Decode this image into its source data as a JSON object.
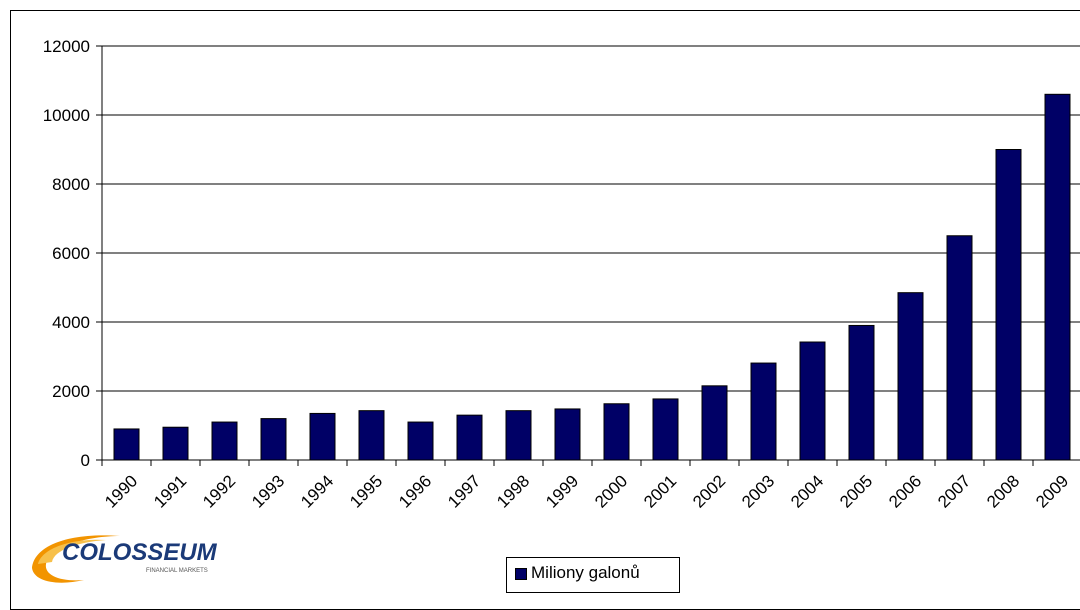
{
  "chart_data": {
    "type": "bar",
    "categories": [
      "1990",
      "1991",
      "1992",
      "1993",
      "1994",
      "1995",
      "1996",
      "1997",
      "1998",
      "1999",
      "2000",
      "2001",
      "2002",
      "2003",
      "2004",
      "2005",
      "2006",
      "2007",
      "2008",
      "2009"
    ],
    "series": [
      {
        "name": "Miliony galonů",
        "values": [
          900,
          950,
          1100,
          1200,
          1350,
          1430,
          1100,
          1300,
          1430,
          1480,
          1630,
          1770,
          2150,
          2810,
          3420,
          3900,
          4850,
          6500,
          9000,
          10600
        ]
      }
    ],
    "ylim": [
      0,
      12000
    ],
    "yticks": [
      0,
      2000,
      4000,
      6000,
      8000,
      10000,
      12000
    ],
    "grid": true,
    "legend_position": "bottom",
    "colors": {
      "bar": "#000066"
    }
  },
  "logo": {
    "text": "COLOSSEUM",
    "subtext": "FINANCIAL MARKETS"
  }
}
